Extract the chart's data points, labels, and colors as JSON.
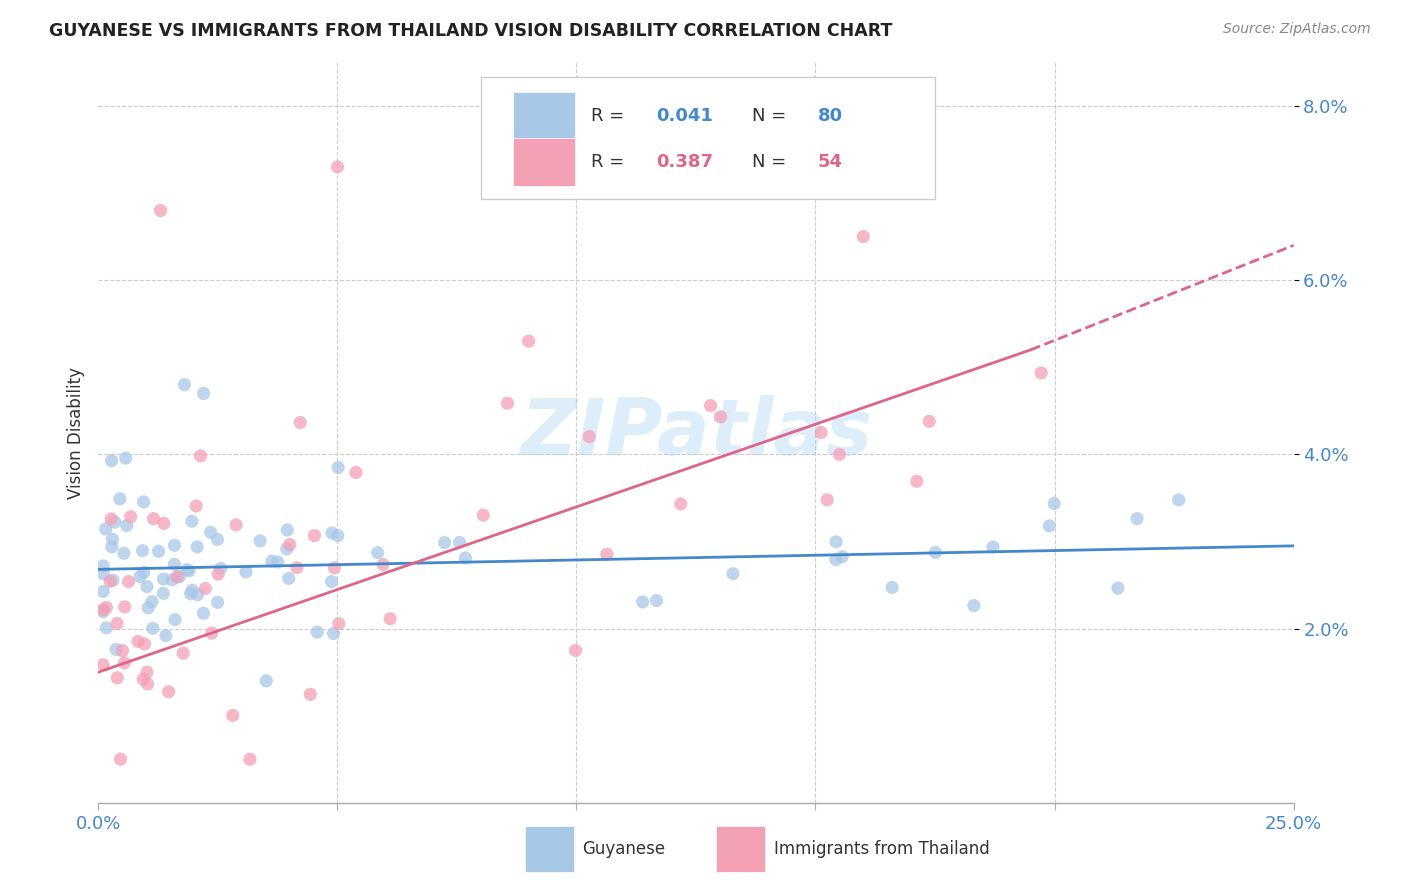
{
  "title": "GUYANESE VS IMMIGRANTS FROM THAILAND VISION DISABILITY CORRELATION CHART",
  "source": "Source: ZipAtlas.com",
  "ylabel": "Vision Disability",
  "yticks": [
    "2.0%",
    "4.0%",
    "6.0%",
    "8.0%"
  ],
  "ytick_vals": [
    0.02,
    0.04,
    0.06,
    0.08
  ],
  "xlim": [
    0.0,
    0.25
  ],
  "ylim": [
    0.0,
    0.085
  ],
  "watermark": "ZIPatlas",
  "legend_r1": "0.041",
  "legend_n1": "80",
  "legend_r2": "0.387",
  "legend_n2": "54",
  "color_blue": "#a8c8e8",
  "color_pink": "#f4a0b5",
  "color_line_blue": "#4488cc",
  "color_line_pink": "#dd6688",
  "line_blue_regression": [
    0.0,
    0.25,
    0.0268,
    0.0295
  ],
  "line_pink_solid": [
    0.0,
    0.195,
    0.015,
    0.052
  ],
  "line_pink_dashed": [
    0.195,
    0.25,
    0.052,
    0.064
  ]
}
